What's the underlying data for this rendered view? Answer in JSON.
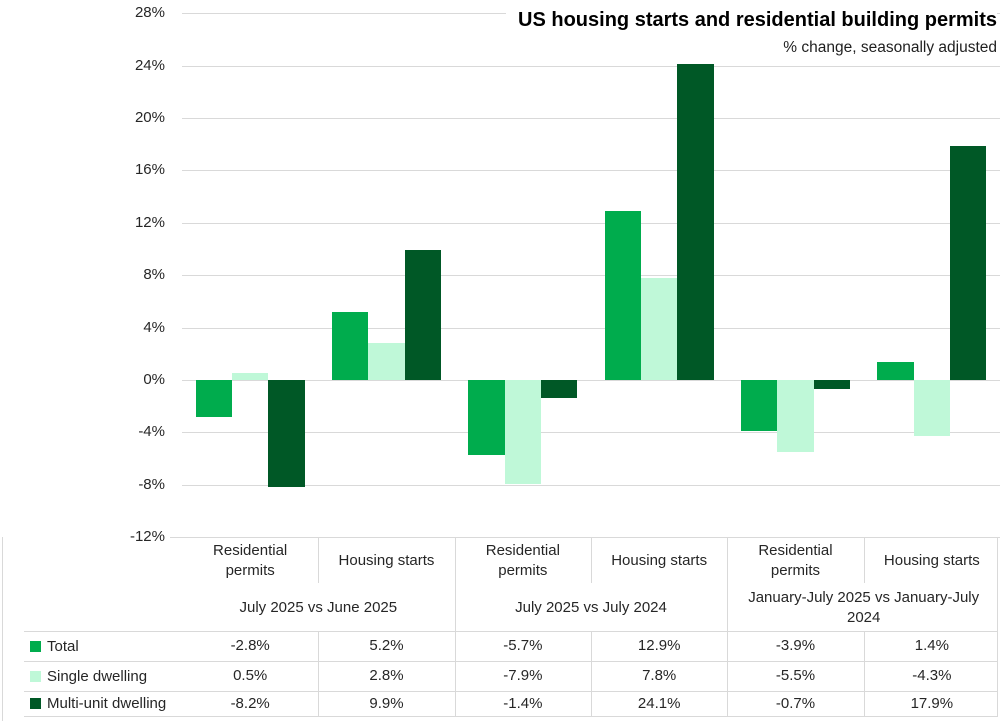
{
  "header": {
    "title": "US housing starts and residential building permits",
    "subtitle": "% change, seasonally adjusted"
  },
  "colors": {
    "total": "#00AC4D",
    "single_dwelling": "#BFF8D8",
    "multi_unit_dwelling": "#005826",
    "gridline": "#D9D9D9",
    "table_border": "#D9D9D9",
    "text": "#262626",
    "title_text": "#000000"
  },
  "chart_data": {
    "type": "bar",
    "title": "US housing starts and residential building permits",
    "subtitle": "% change, seasonally adjusted",
    "xlabel": "",
    "ylabel": "% change, seasonally adjusted",
    "ylim": [
      -12,
      28
    ],
    "ytick_step": 4,
    "ytick_labels": [
      "28%",
      "24%",
      "20%",
      "16%",
      "12%",
      "8%",
      "4%",
      "0%",
      "-4%",
      "-8%",
      "-12%"
    ],
    "grid": true,
    "legend_position": "bottom-left-table-rows",
    "categories": [
      "Residential permits",
      "Housing starts",
      "Residential permits",
      "Housing starts",
      "Residential permits",
      "Housing starts"
    ],
    "period_groups": [
      {
        "label": "July 2025 vs June 2025",
        "columns": [
          0,
          1
        ]
      },
      {
        "label": "July 2025 vs July 2024",
        "columns": [
          2,
          3
        ]
      },
      {
        "label": "January-July 2025 vs January-July 2024",
        "columns": [
          4,
          5
        ]
      }
    ],
    "series": [
      {
        "name": "Total",
        "color": "#00AC4D",
        "values": [
          -2.8,
          5.2,
          -5.7,
          12.9,
          -3.9,
          1.4
        ]
      },
      {
        "name": "Single dwelling",
        "color": "#BFF8D8",
        "values": [
          0.5,
          2.8,
          -7.9,
          7.8,
          -5.5,
          -4.3
        ]
      },
      {
        "name": "Multi-unit dwelling",
        "color": "#005826",
        "values": [
          -8.2,
          9.9,
          -1.4,
          24.1,
          -0.7,
          17.9
        ]
      }
    ]
  },
  "table": {
    "column_headers": [
      "Residential permits",
      "Housing starts",
      "Residential permits",
      "Housing starts",
      "Residential permits",
      "Housing starts"
    ],
    "period_headers": [
      "July 2025 vs June 2025",
      "July 2025 vs July 2024",
      "January-July 2025 vs January-July 2024"
    ],
    "rows": [
      {
        "label": "Total",
        "values": [
          "-2.8%",
          "5.2%",
          "-5.7%",
          "12.9%",
          "-3.9%",
          "1.4%"
        ]
      },
      {
        "label": "Single dwelling",
        "values": [
          "0.5%",
          "2.8%",
          "-7.9%",
          "7.8%",
          "-5.5%",
          "-4.3%"
        ]
      },
      {
        "label": "Multi-unit dwelling",
        "values": [
          "-8.2%",
          "9.9%",
          "-1.4%",
          "24.1%",
          "-0.7%",
          "17.9%"
        ]
      }
    ]
  }
}
